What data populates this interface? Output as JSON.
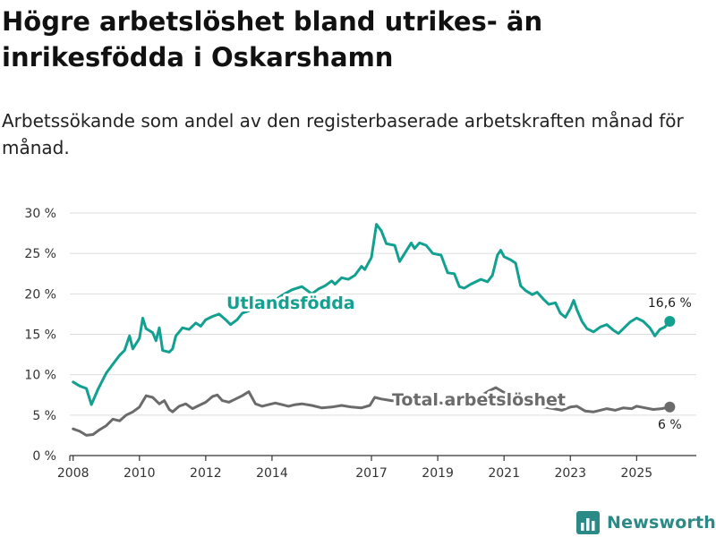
{
  "header": {
    "title": "Högre arbetslöshet bland utrikes- än inrikesfödda i Oskarshamn",
    "subtitle": "Arbetssökande som andel av den registerbaserade arbetskraften månad för månad."
  },
  "brand": {
    "name": "Newsworthy",
    "icon": "bar-chart-logo-icon"
  },
  "colors": {
    "foreign_born": "#12a091",
    "total": "#6b6b6b",
    "grid": "#dddddd",
    "axis": "#333333",
    "brand": "#2c8a86"
  },
  "chart_data": {
    "type": "line",
    "title": "",
    "xlabel": "",
    "ylabel": "",
    "ylim": [
      0,
      30
    ],
    "yticks": [
      0,
      5,
      10,
      15,
      20,
      25,
      30
    ],
    "ytick_labels": [
      "0 %",
      "5 %",
      "10 %",
      "15 %",
      "20 %",
      "25 %",
      "30 %"
    ],
    "xlim": [
      2007.9,
      2026.8
    ],
    "xticks": [
      2008,
      2010,
      2012,
      2014,
      2017,
      2019,
      2021,
      2023,
      2025
    ],
    "xtick_labels": [
      "2008",
      "2010",
      "2012",
      "2014",
      "2017",
      "2019",
      "2021",
      "2023",
      "2025"
    ],
    "series": [
      {
        "name": "Utlandsfödda",
        "color": "#12a091",
        "end_label": "16,6 %",
        "points": [
          [
            2008.0,
            9.1
          ],
          [
            2008.2,
            8.6
          ],
          [
            2008.4,
            8.3
          ],
          [
            2008.55,
            6.3
          ],
          [
            2008.75,
            8.2
          ],
          [
            2008.9,
            9.4
          ],
          [
            2009.0,
            10.2
          ],
          [
            2009.2,
            11.3
          ],
          [
            2009.4,
            12.4
          ],
          [
            2009.55,
            13.0
          ],
          [
            2009.7,
            14.8
          ],
          [
            2009.8,
            13.2
          ],
          [
            2010.0,
            14.5
          ],
          [
            2010.1,
            17.0
          ],
          [
            2010.2,
            15.7
          ],
          [
            2010.4,
            15.2
          ],
          [
            2010.5,
            14.2
          ],
          [
            2010.6,
            15.8
          ],
          [
            2010.7,
            13.0
          ],
          [
            2010.9,
            12.8
          ],
          [
            2011.0,
            13.2
          ],
          [
            2011.1,
            14.8
          ],
          [
            2011.3,
            15.8
          ],
          [
            2011.5,
            15.6
          ],
          [
            2011.7,
            16.4
          ],
          [
            2011.85,
            16.0
          ],
          [
            2012.0,
            16.8
          ],
          [
            2012.2,
            17.2
          ],
          [
            2012.4,
            17.5
          ],
          [
            2012.6,
            16.8
          ],
          [
            2012.75,
            16.2
          ],
          [
            2012.95,
            16.8
          ],
          [
            2013.1,
            17.6
          ],
          [
            2013.3,
            17.9
          ],
          [
            2013.5,
            18.3
          ],
          [
            2013.7,
            18.6
          ],
          [
            2014.0,
            19.0
          ],
          [
            2014.3,
            19.8
          ],
          [
            2014.6,
            20.5
          ],
          [
            2014.9,
            20.9
          ],
          [
            2015.2,
            20.0
          ],
          [
            2015.4,
            20.6
          ],
          [
            2015.6,
            21.0
          ],
          [
            2015.8,
            21.6
          ],
          [
            2015.9,
            21.2
          ],
          [
            2016.1,
            22.0
          ],
          [
            2016.3,
            21.8
          ],
          [
            2016.5,
            22.3
          ],
          [
            2016.7,
            23.4
          ],
          [
            2016.8,
            23.0
          ],
          [
            2017.0,
            24.5
          ],
          [
            2017.15,
            28.6
          ],
          [
            2017.3,
            27.8
          ],
          [
            2017.45,
            26.2
          ],
          [
            2017.7,
            26.0
          ],
          [
            2017.85,
            24.0
          ],
          [
            2018.0,
            25.0
          ],
          [
            2018.2,
            26.3
          ],
          [
            2018.3,
            25.6
          ],
          [
            2018.45,
            26.3
          ],
          [
            2018.65,
            26.0
          ],
          [
            2018.85,
            25.0
          ],
          [
            2019.1,
            24.8
          ],
          [
            2019.3,
            22.6
          ],
          [
            2019.5,
            22.5
          ],
          [
            2019.65,
            20.9
          ],
          [
            2019.8,
            20.7
          ],
          [
            2020.0,
            21.2
          ],
          [
            2020.3,
            21.8
          ],
          [
            2020.5,
            21.5
          ],
          [
            2020.65,
            22.3
          ],
          [
            2020.8,
            24.8
          ],
          [
            2020.9,
            25.4
          ],
          [
            2021.0,
            24.6
          ],
          [
            2021.2,
            24.2
          ],
          [
            2021.35,
            23.8
          ],
          [
            2021.5,
            21.0
          ],
          [
            2021.65,
            20.4
          ],
          [
            2021.85,
            19.9
          ],
          [
            2022.0,
            20.2
          ],
          [
            2022.2,
            19.3
          ],
          [
            2022.35,
            18.7
          ],
          [
            2022.55,
            18.9
          ],
          [
            2022.7,
            17.6
          ],
          [
            2022.85,
            17.1
          ],
          [
            2023.0,
            18.2
          ],
          [
            2023.1,
            19.2
          ],
          [
            2023.2,
            18.0
          ],
          [
            2023.35,
            16.6
          ],
          [
            2023.5,
            15.7
          ],
          [
            2023.7,
            15.3
          ],
          [
            2023.9,
            15.9
          ],
          [
            2024.1,
            16.2
          ],
          [
            2024.3,
            15.5
          ],
          [
            2024.45,
            15.1
          ],
          [
            2024.6,
            15.7
          ],
          [
            2024.8,
            16.5
          ],
          [
            2025.0,
            17.0
          ],
          [
            2025.2,
            16.6
          ],
          [
            2025.4,
            15.8
          ],
          [
            2025.55,
            14.8
          ],
          [
            2025.7,
            15.6
          ],
          [
            2025.85,
            15.9
          ],
          [
            2026.0,
            16.6
          ]
        ]
      },
      {
        "name": "Total arbetslöshet",
        "color": "#6b6b6b",
        "end_label": "6 %",
        "points": [
          [
            2008.0,
            3.3
          ],
          [
            2008.2,
            3.0
          ],
          [
            2008.4,
            2.5
          ],
          [
            2008.6,
            2.6
          ],
          [
            2008.8,
            3.2
          ],
          [
            2009.0,
            3.7
          ],
          [
            2009.2,
            4.5
          ],
          [
            2009.4,
            4.3
          ],
          [
            2009.6,
            5.0
          ],
          [
            2009.8,
            5.4
          ],
          [
            2010.0,
            6.0
          ],
          [
            2010.2,
            7.4
          ],
          [
            2010.4,
            7.2
          ],
          [
            2010.6,
            6.4
          ],
          [
            2010.75,
            6.8
          ],
          [
            2010.9,
            5.7
          ],
          [
            2011.0,
            5.4
          ],
          [
            2011.2,
            6.1
          ],
          [
            2011.4,
            6.4
          ],
          [
            2011.6,
            5.8
          ],
          [
            2011.8,
            6.2
          ],
          [
            2012.0,
            6.6
          ],
          [
            2012.2,
            7.3
          ],
          [
            2012.35,
            7.5
          ],
          [
            2012.5,
            6.8
          ],
          [
            2012.7,
            6.6
          ],
          [
            2012.9,
            7.0
          ],
          [
            2013.1,
            7.4
          ],
          [
            2013.3,
            7.9
          ],
          [
            2013.5,
            6.4
          ],
          [
            2013.7,
            6.1
          ],
          [
            2013.9,
            6.3
          ],
          [
            2014.1,
            6.5
          ],
          [
            2014.3,
            6.3
          ],
          [
            2014.5,
            6.1
          ],
          [
            2014.7,
            6.3
          ],
          [
            2014.9,
            6.4
          ],
          [
            2015.2,
            6.2
          ],
          [
            2015.5,
            5.9
          ],
          [
            2015.8,
            6.0
          ],
          [
            2016.1,
            6.2
          ],
          [
            2016.4,
            6.0
          ],
          [
            2016.7,
            5.9
          ],
          [
            2016.95,
            6.2
          ],
          [
            2017.1,
            7.2
          ],
          [
            2017.3,
            7.0
          ],
          [
            2017.6,
            6.8
          ],
          [
            2017.9,
            6.7
          ],
          [
            2018.2,
            6.6
          ],
          [
            2018.5,
            6.8
          ],
          [
            2018.8,
            6.6
          ],
          [
            2019.1,
            6.5
          ],
          [
            2019.4,
            6.4
          ],
          [
            2019.7,
            6.6
          ],
          [
            2020.0,
            6.8
          ],
          [
            2020.3,
            7.4
          ],
          [
            2020.55,
            8.0
          ],
          [
            2020.75,
            8.4
          ],
          [
            2021.0,
            7.8
          ],
          [
            2021.3,
            7.2
          ],
          [
            2021.6,
            6.8
          ],
          [
            2021.9,
            6.4
          ],
          [
            2022.2,
            6.0
          ],
          [
            2022.5,
            5.8
          ],
          [
            2022.75,
            5.6
          ],
          [
            2023.0,
            6.0
          ],
          [
            2023.2,
            6.1
          ],
          [
            2023.45,
            5.5
          ],
          [
            2023.7,
            5.4
          ],
          [
            2023.9,
            5.6
          ],
          [
            2024.1,
            5.8
          ],
          [
            2024.35,
            5.6
          ],
          [
            2024.6,
            5.9
          ],
          [
            2024.85,
            5.8
          ],
          [
            2025.0,
            6.1
          ],
          [
            2025.25,
            5.9
          ],
          [
            2025.5,
            5.7
          ],
          [
            2025.75,
            5.8
          ],
          [
            2026.0,
            6.0
          ]
        ]
      }
    ]
  }
}
